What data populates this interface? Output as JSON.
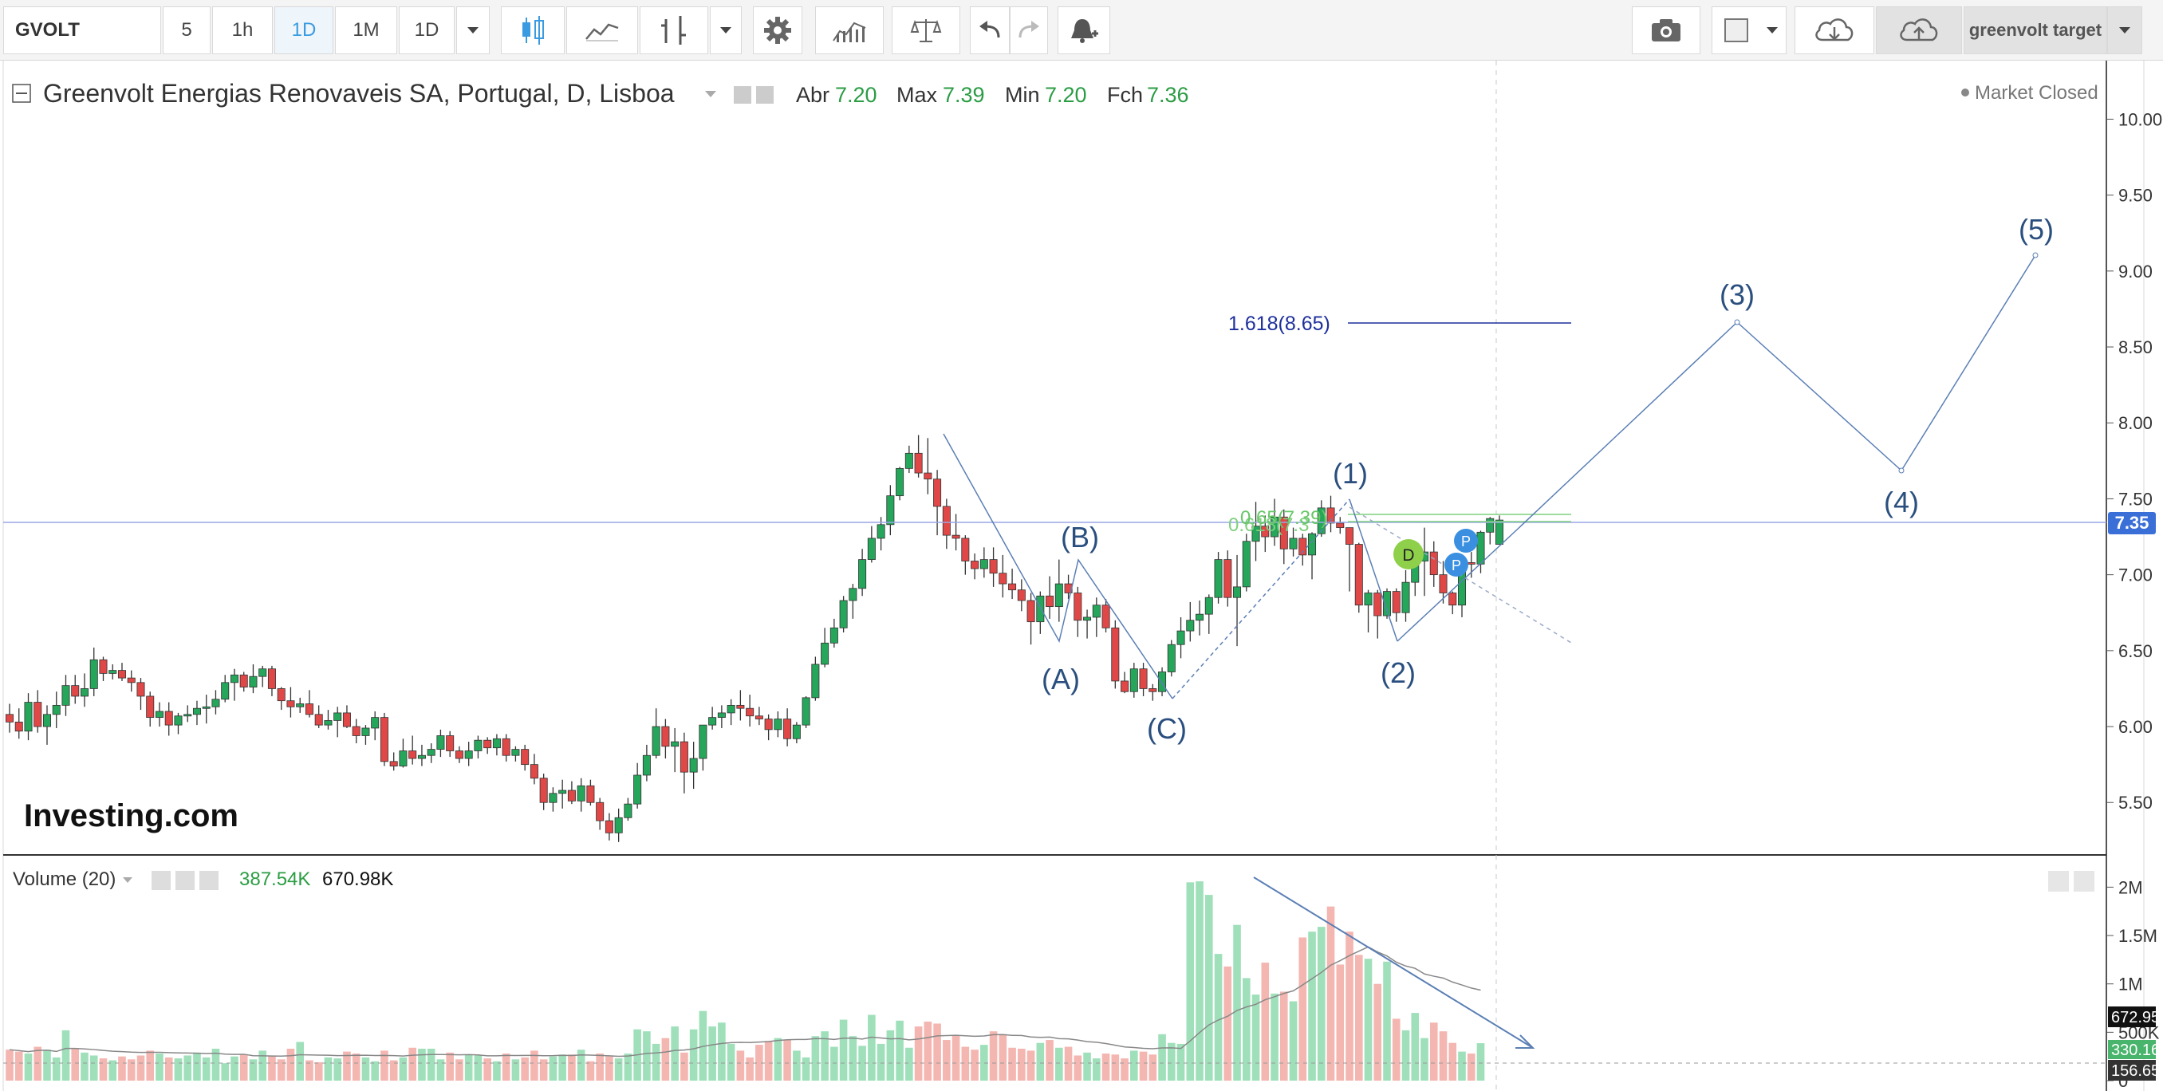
{
  "toolbar": {
    "symbol": "GVOLT",
    "intervals": [
      "5",
      "1h",
      "1D",
      "1M",
      "1D"
    ],
    "active_interval_index": 2,
    "layout_name": "greenvolt target",
    "icons": [
      "candles-icon",
      "line-chart-icon",
      "indicator-icon",
      "settings-icon",
      "compare-icon",
      "balance-icon",
      "undo-icon",
      "redo-icon",
      "add-alert-icon",
      "camera-icon",
      "layout-icon",
      "cloud-download-icon",
      "cloud-upload-icon"
    ]
  },
  "legend": {
    "title": "Greenvolt Energias Renovaveis SA, Portugal, D, Lisboa",
    "open_label": "Abr",
    "open": "7.20",
    "high_label": "Max",
    "high": "7.39",
    "low_label": "Min",
    "low": "7.20",
    "close_label": "Fch",
    "close": "7.36"
  },
  "status": "Market Closed",
  "watermark": "Investing.com",
  "price_axis": {
    "ticks": [
      "10.00",
      "9.50",
      "9.00",
      "8.50",
      "8.00",
      "7.50",
      "7.00",
      "6.50",
      "6.00",
      "5.50"
    ],
    "current_price": "7.35",
    "current_price_color": "#3b6fd8"
  },
  "annotations": {
    "fib_target": "1.618(8.65)",
    "fib_overlap_a": "0.618(7.3",
    "fib_overlap_b": "0.65(7.39)",
    "abc_labels": [
      "(A)",
      "(B)",
      "(C)"
    ],
    "wave_labels": [
      "(1)",
      "(2)",
      "(3)",
      "(4)",
      "(5)"
    ],
    "event_markers": [
      "D",
      "P",
      "P"
    ]
  },
  "volume": {
    "title": "Volume (20)",
    "value_a": "387.54K",
    "value_b": "670.98K",
    "axis_ticks": [
      "2M",
      "1.5M",
      "1M",
      "500K",
      "0"
    ],
    "labels": [
      "672.95K",
      "330.16K",
      "156.65K"
    ]
  },
  "colors": {
    "up": "#26a65b",
    "down": "#e04848",
    "vol_up": "#9fe0bb",
    "vol_down": "#f4b6b1",
    "annotation": "#2a4f7f",
    "fib_blue": "#1d2f9c",
    "fib_green": "#7fd07f"
  },
  "chart_data": {
    "type": "candlestick",
    "interval": "D",
    "ohlc": [
      [
        6.08,
        6.15,
        5.96,
        6.03
      ],
      [
        6.03,
        6.12,
        5.92,
        5.97
      ],
      [
        5.97,
        6.22,
        5.91,
        6.16
      ],
      [
        6.16,
        6.24,
        5.96,
        6.0
      ],
      [
        6.0,
        6.14,
        5.88,
        6.08
      ],
      [
        6.08,
        6.23,
        5.99,
        6.14
      ],
      [
        6.14,
        6.34,
        6.07,
        6.27
      ],
      [
        6.27,
        6.34,
        6.15,
        6.2
      ],
      [
        6.2,
        6.35,
        6.13,
        6.25
      ],
      [
        6.25,
        6.52,
        6.2,
        6.44
      ],
      [
        6.44,
        6.46,
        6.3,
        6.35
      ],
      [
        6.35,
        6.41,
        6.31,
        6.37
      ],
      [
        6.37,
        6.42,
        6.3,
        6.32
      ],
      [
        6.32,
        6.37,
        6.23,
        6.29
      ],
      [
        6.29,
        6.32,
        6.11,
        6.2
      ],
      [
        6.2,
        6.23,
        6.0,
        6.06
      ],
      [
        6.06,
        6.16,
        6.0,
        6.1
      ],
      [
        6.1,
        6.16,
        5.94,
        6.01
      ],
      [
        6.01,
        6.09,
        5.95,
        6.07
      ],
      [
        6.07,
        6.14,
        6.03,
        6.08
      ],
      [
        6.08,
        6.17,
        6.01,
        6.12
      ],
      [
        6.12,
        6.21,
        6.02,
        6.13
      ],
      [
        6.13,
        6.24,
        6.08,
        6.18
      ],
      [
        6.18,
        6.34,
        6.16,
        6.29
      ],
      [
        6.29,
        6.38,
        6.17,
        6.34
      ],
      [
        6.34,
        6.36,
        6.23,
        6.26
      ],
      [
        6.26,
        6.41,
        6.22,
        6.33
      ],
      [
        6.33,
        6.4,
        6.26,
        6.38
      ],
      [
        6.38,
        6.4,
        6.2,
        6.25
      ],
      [
        6.25,
        6.26,
        6.11,
        6.17
      ],
      [
        6.17,
        6.26,
        6.06,
        6.13
      ],
      [
        6.13,
        6.19,
        6.09,
        6.15
      ],
      [
        6.15,
        6.24,
        6.06,
        6.08
      ],
      [
        6.08,
        6.14,
        5.99,
        6.01
      ],
      [
        6.01,
        6.11,
        5.98,
        6.04
      ],
      [
        6.04,
        6.13,
        5.93,
        6.09
      ],
      [
        6.09,
        6.14,
        5.99,
        6.0
      ],
      [
        6.0,
        6.05,
        5.89,
        5.94
      ],
      [
        5.94,
        6.01,
        5.88,
        5.99
      ],
      [
        5.99,
        6.1,
        5.91,
        6.06
      ],
      [
        6.06,
        6.09,
        5.74,
        5.77
      ],
      [
        5.77,
        5.83,
        5.71,
        5.74
      ],
      [
        5.74,
        5.92,
        5.73,
        5.84
      ],
      [
        5.84,
        5.94,
        5.75,
        5.79
      ],
      [
        5.79,
        5.88,
        5.74,
        5.81
      ],
      [
        5.81,
        5.89,
        5.76,
        5.85
      ],
      [
        5.85,
        5.98,
        5.8,
        5.94
      ],
      [
        5.94,
        5.97,
        5.8,
        5.84
      ],
      [
        5.84,
        5.87,
        5.76,
        5.79
      ],
      [
        5.79,
        5.9,
        5.74,
        5.84
      ],
      [
        5.84,
        5.94,
        5.79,
        5.91
      ],
      [
        5.91,
        5.93,
        5.82,
        5.86
      ],
      [
        5.86,
        5.95,
        5.81,
        5.92
      ],
      [
        5.92,
        5.95,
        5.77,
        5.81
      ],
      [
        5.81,
        5.87,
        5.77,
        5.85
      ],
      [
        5.85,
        5.88,
        5.71,
        5.75
      ],
      [
        5.75,
        5.82,
        5.62,
        5.66
      ],
      [
        5.66,
        5.69,
        5.45,
        5.5
      ],
      [
        5.5,
        5.6,
        5.44,
        5.56
      ],
      [
        5.56,
        5.65,
        5.46,
        5.58
      ],
      [
        5.58,
        5.64,
        5.49,
        5.51
      ],
      [
        5.51,
        5.66,
        5.44,
        5.61
      ],
      [
        5.61,
        5.65,
        5.48,
        5.5
      ],
      [
        5.5,
        5.53,
        5.32,
        5.38
      ],
      [
        5.38,
        5.43,
        5.25,
        5.3
      ],
      [
        5.3,
        5.46,
        5.24,
        5.4
      ],
      [
        5.4,
        5.53,
        5.38,
        5.49
      ],
      [
        5.49,
        5.76,
        5.46,
        5.68
      ],
      [
        5.68,
        5.88,
        5.64,
        5.81
      ],
      [
        5.81,
        6.12,
        5.79,
        6.0
      ],
      [
        6.0,
        6.05,
        5.79,
        5.87
      ],
      [
        5.87,
        5.99,
        5.7,
        5.9
      ],
      [
        5.9,
        5.96,
        5.56,
        5.7
      ],
      [
        5.7,
        5.9,
        5.59,
        5.79
      ],
      [
        5.79,
        6.01,
        5.71,
        6.01
      ],
      [
        6.01,
        6.13,
        5.98,
        6.06
      ],
      [
        6.06,
        6.14,
        5.99,
        6.09
      ],
      [
        6.09,
        6.18,
        6.01,
        6.14
      ],
      [
        6.14,
        6.24,
        6.04,
        6.12
      ],
      [
        6.12,
        6.21,
        6.0,
        6.07
      ],
      [
        6.07,
        6.13,
        6.01,
        6.05
      ],
      [
        6.05,
        6.08,
        5.91,
        5.98
      ],
      [
        5.98,
        6.1,
        5.93,
        6.05
      ],
      [
        6.05,
        6.12,
        5.87,
        5.92
      ],
      [
        5.92,
        6.03,
        5.89,
        6.01
      ],
      [
        6.01,
        6.2,
        5.99,
        6.19
      ],
      [
        6.19,
        6.46,
        6.17,
        6.41
      ],
      [
        6.41,
        6.65,
        6.39,
        6.55
      ],
      [
        6.55,
        6.71,
        6.52,
        6.65
      ],
      [
        6.65,
        6.86,
        6.62,
        6.83
      ],
      [
        6.83,
        6.94,
        6.71,
        6.91
      ],
      [
        6.91,
        7.17,
        6.86,
        7.1
      ],
      [
        7.1,
        7.32,
        7.08,
        7.24
      ],
      [
        7.24,
        7.38,
        7.16,
        7.33
      ],
      [
        7.33,
        7.59,
        7.26,
        7.52
      ],
      [
        7.52,
        7.71,
        7.49,
        7.7
      ],
      [
        7.7,
        7.85,
        7.67,
        7.8
      ],
      [
        7.8,
        7.92,
        7.64,
        7.67
      ],
      [
        7.67,
        7.9,
        7.53,
        7.63
      ],
      [
        7.63,
        7.69,
        7.26,
        7.45
      ],
      [
        7.45,
        7.5,
        7.17,
        7.26
      ],
      [
        7.26,
        7.4,
        7.16,
        7.24
      ],
      [
        7.24,
        7.26,
        7.0,
        7.09
      ],
      [
        7.09,
        7.14,
        6.97,
        7.04
      ],
      [
        7.04,
        7.18,
        6.98,
        7.1
      ],
      [
        7.1,
        7.18,
        6.92,
        7.01
      ],
      [
        7.01,
        7.13,
        6.85,
        6.94
      ],
      [
        6.94,
        7.04,
        6.84,
        6.9
      ],
      [
        6.9,
        6.97,
        6.76,
        6.83
      ],
      [
        6.83,
        6.88,
        6.54,
        6.69
      ],
      [
        6.69,
        6.89,
        6.61,
        6.86
      ],
      [
        6.86,
        6.99,
        6.71,
        6.79
      ],
      [
        6.79,
        7.1,
        6.69,
        6.94
      ],
      [
        6.94,
        7.0,
        6.84,
        6.88
      ],
      [
        6.88,
        6.92,
        6.59,
        6.7
      ],
      [
        6.7,
        6.77,
        6.58,
        6.72
      ],
      [
        6.72,
        6.85,
        6.59,
        6.8
      ],
      [
        6.8,
        6.84,
        6.62,
        6.65
      ],
      [
        6.65,
        6.7,
        6.25,
        6.3
      ],
      [
        6.3,
        6.36,
        6.22,
        6.23
      ],
      [
        6.23,
        6.42,
        6.19,
        6.38
      ],
      [
        6.38,
        6.42,
        6.2,
        6.25
      ],
      [
        6.25,
        6.28,
        6.17,
        6.23
      ],
      [
        6.23,
        6.39,
        6.2,
        6.36
      ],
      [
        6.36,
        6.57,
        6.33,
        6.54
      ],
      [
        6.54,
        6.72,
        6.45,
        6.63
      ],
      [
        6.63,
        6.82,
        6.56,
        6.7
      ],
      [
        6.7,
        6.83,
        6.6,
        6.74
      ],
      [
        6.74,
        6.87,
        6.61,
        6.85
      ],
      [
        6.85,
        7.15,
        6.81,
        7.1
      ],
      [
        7.1,
        7.16,
        6.79,
        6.85
      ],
      [
        6.85,
        7.13,
        6.53,
        6.92
      ],
      [
        6.92,
        7.27,
        6.89,
        7.22
      ],
      [
        7.22,
        7.48,
        7.09,
        7.32
      ],
      [
        7.32,
        7.39,
        7.15,
        7.25
      ],
      [
        7.25,
        7.5,
        7.19,
        7.38
      ],
      [
        7.38,
        7.43,
        7.07,
        7.17
      ],
      [
        7.17,
        7.31,
        7.12,
        7.24
      ],
      [
        7.24,
        7.27,
        7.06,
        7.13
      ],
      [
        7.13,
        7.28,
        6.97,
        7.27
      ],
      [
        7.27,
        7.49,
        7.25,
        7.44
      ],
      [
        7.44,
        7.52,
        7.28,
        7.34
      ],
      [
        7.34,
        7.38,
        7.27,
        7.31
      ],
      [
        7.31,
        7.31,
        6.89,
        7.2
      ],
      [
        7.2,
        7.21,
        6.75,
        6.8
      ],
      [
        6.8,
        6.9,
        6.62,
        6.88
      ],
      [
        6.88,
        6.9,
        6.58,
        6.73
      ],
      [
        6.73,
        6.91,
        6.71,
        6.89
      ],
      [
        6.89,
        6.91,
        6.69,
        6.75
      ],
      [
        6.75,
        7.03,
        6.69,
        6.95
      ],
      [
        6.95,
        7.15,
        6.86,
        7.09
      ],
      [
        7.09,
        7.31,
        6.86,
        7.15
      ],
      [
        7.15,
        7.22,
        6.92,
        7.0
      ],
      [
        7.0,
        7.09,
        6.81,
        6.88
      ],
      [
        6.88,
        6.89,
        6.74,
        6.8
      ],
      [
        6.8,
        7.12,
        6.72,
        7.08
      ],
      [
        7.08,
        7.15,
        6.98,
        7.07
      ],
      [
        7.07,
        7.29,
        7.01,
        7.28
      ],
      [
        7.28,
        7.38,
        7.2,
        7.37
      ],
      [
        7.2,
        7.39,
        7.2,
        7.36
      ]
    ],
    "volume": [
      320,
      300,
      280,
      350,
      320,
      240,
      520,
      330,
      290,
      260,
      230,
      210,
      250,
      220,
      260,
      310,
      280,
      240,
      230,
      260,
      290,
      240,
      330,
      180,
      250,
      270,
      220,
      310,
      260,
      220,
      330,
      400,
      210,
      190,
      240,
      230,
      300,
      280,
      240,
      200,
      310,
      210,
      240,
      340,
      330,
      330,
      220,
      290,
      220,
      270,
      260,
      230,
      200,
      280,
      220,
      240,
      310,
      220,
      250,
      270,
      270,
      320,
      200,
      280,
      250,
      230,
      280,
      530,
      510,
      380,
      440,
      560,
      290,
      530,
      720,
      560,
      600,
      380,
      310,
      240,
      370,
      410,
      440,
      420,
      310,
      240,
      460,
      510,
      350,
      630,
      460,
      360,
      680,
      380,
      520,
      620,
      340,
      560,
      610,
      590,
      420,
      470,
      350,
      320,
      370,
      510,
      480,
      340,
      330,
      310,
      390,
      420,
      340,
      350,
      260,
      290,
      230,
      280,
      270,
      230,
      310,
      300,
      270,
      480,
      390,
      380,
      2050,
      2060,
      1920,
      1310,
      1180,
      1610,
      1060,
      890,
      1220,
      900,
      920,
      820,
      1480,
      1540,
      1590,
      1800,
      1200,
      1540,
      1300,
      1260,
      1000,
      1230,
      640,
      520,
      700,
      440,
      600,
      510,
      390,
      300,
      280,
      387
    ],
    "volume_ma_note": "Volume (20)",
    "fibonacci": {
      "1.618": 8.65,
      "0.618": 7.3,
      "0.65": 7.39
    },
    "elliott_projection": [
      {
        "label": "(2)",
        "price": 6.57
      },
      {
        "label": "(3)",
        "price": 8.65
      },
      {
        "label": "(4)",
        "price": 7.68
      },
      {
        "label": "(5)",
        "price": 9.1
      }
    ],
    "y_range": [
      5.22,
      10.3
    ]
  }
}
